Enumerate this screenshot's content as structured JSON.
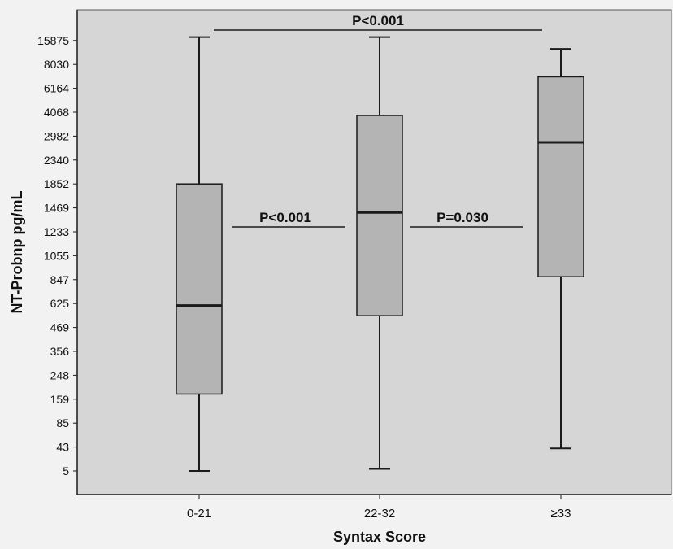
{
  "chart_data": {
    "type": "box",
    "xlabel": "Syntax Score",
    "ylabel": "NT-Probnp pg/mL",
    "y_scale": "ordinal (equally spaced labeled ticks)",
    "y_ticks": [
      5,
      43,
      85,
      159,
      248,
      356,
      469,
      625,
      847,
      1055,
      1233,
      1469,
      1852,
      2340,
      2982,
      4068,
      6164,
      8030,
      15875
    ],
    "categories": [
      "0-21",
      "22-32",
      "≥33"
    ],
    "boxes": [
      {
        "category": "0-21",
        "min": 5,
        "q1": 175,
        "median": 610,
        "q3": 1852,
        "max": 17500
      },
      {
        "category": "22-32",
        "min": 6,
        "q1": 540,
        "median": 1420,
        "q3": 3900,
        "max": 17500
      },
      {
        "category": "≥33",
        "min": 38,
        "q1": 870,
        "median": 2800,
        "q3": 7000,
        "max": 12500
      }
    ],
    "annotations": [
      {
        "text": "P<0.001",
        "from": "0-21",
        "to": "≥33"
      },
      {
        "text": "P<0.001",
        "from": "0-21",
        "to": "22-32"
      },
      {
        "text": "P=0.030",
        "from": "22-32",
        "to": "≥33"
      }
    ],
    "colors": {
      "plot_background": "#d6d6d6",
      "box_fill": "#b4b4b4",
      "line": "#1a1a1a",
      "page_background": "#f2f2f2"
    },
    "grid": false,
    "legend": "none"
  }
}
